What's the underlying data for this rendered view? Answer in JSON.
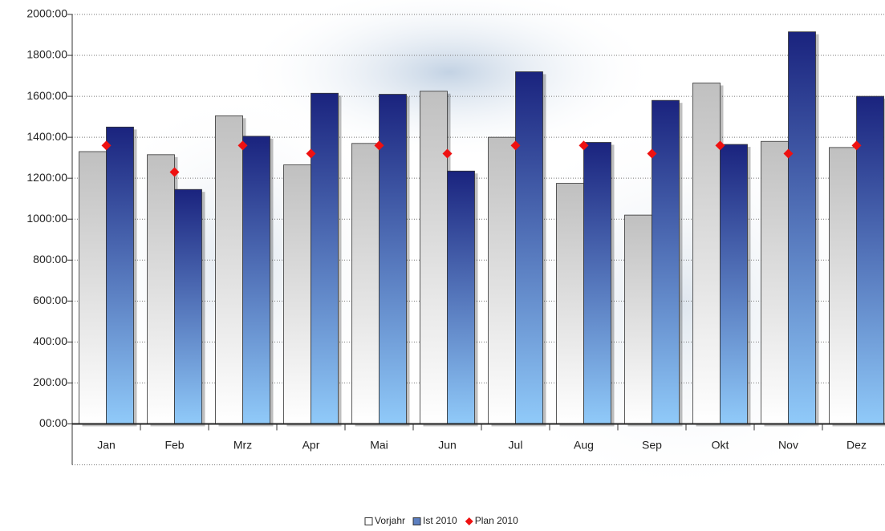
{
  "chart_data": {
    "type": "bar",
    "categories": [
      "Jan",
      "Feb",
      "Mrz",
      "Apr",
      "Mai",
      "Jun",
      "Jul",
      "Aug",
      "Sep",
      "Okt",
      "Nov",
      "Dez"
    ],
    "series": [
      {
        "name": "Vorjahr",
        "color": "#c0c0c0",
        "values": [
          1330,
          1315,
          1505,
          1265,
          1370,
          1625,
          1400,
          1175,
          1020,
          1665,
          1380,
          1350
        ]
      },
      {
        "name": "Ist 2010",
        "color": "#1a237e",
        "values": [
          1450,
          1145,
          1405,
          1615,
          1610,
          1235,
          1720,
          1375,
          1580,
          1365,
          1915,
          1600
        ]
      },
      {
        "name": "Plan 2010",
        "color": "#ee1111",
        "type": "scatter",
        "values": [
          1360,
          1230,
          1360,
          1320,
          1360,
          1320,
          1360,
          1360,
          1320,
          1360,
          1320,
          1360
        ]
      }
    ],
    "ylim": [
      -200,
      2000
    ],
    "yticks": [
      {
        "value": 0,
        "label": "00:00"
      },
      {
        "value": 200,
        "label": "200:00"
      },
      {
        "value": 400,
        "label": "400:00"
      },
      {
        "value": 600,
        "label": "600:00"
      },
      {
        "value": 800,
        "label": "800:00"
      },
      {
        "value": 1000,
        "label": "1000:00"
      },
      {
        "value": 1200,
        "label": "1200:00"
      },
      {
        "value": 1400,
        "label": "1400:00"
      },
      {
        "value": 1600,
        "label": "1600:00"
      },
      {
        "value": 1800,
        "label": "1800:00"
      },
      {
        "value": 2000,
        "label": "2000:00"
      }
    ],
    "grid": true,
    "legend": "bottom"
  }
}
